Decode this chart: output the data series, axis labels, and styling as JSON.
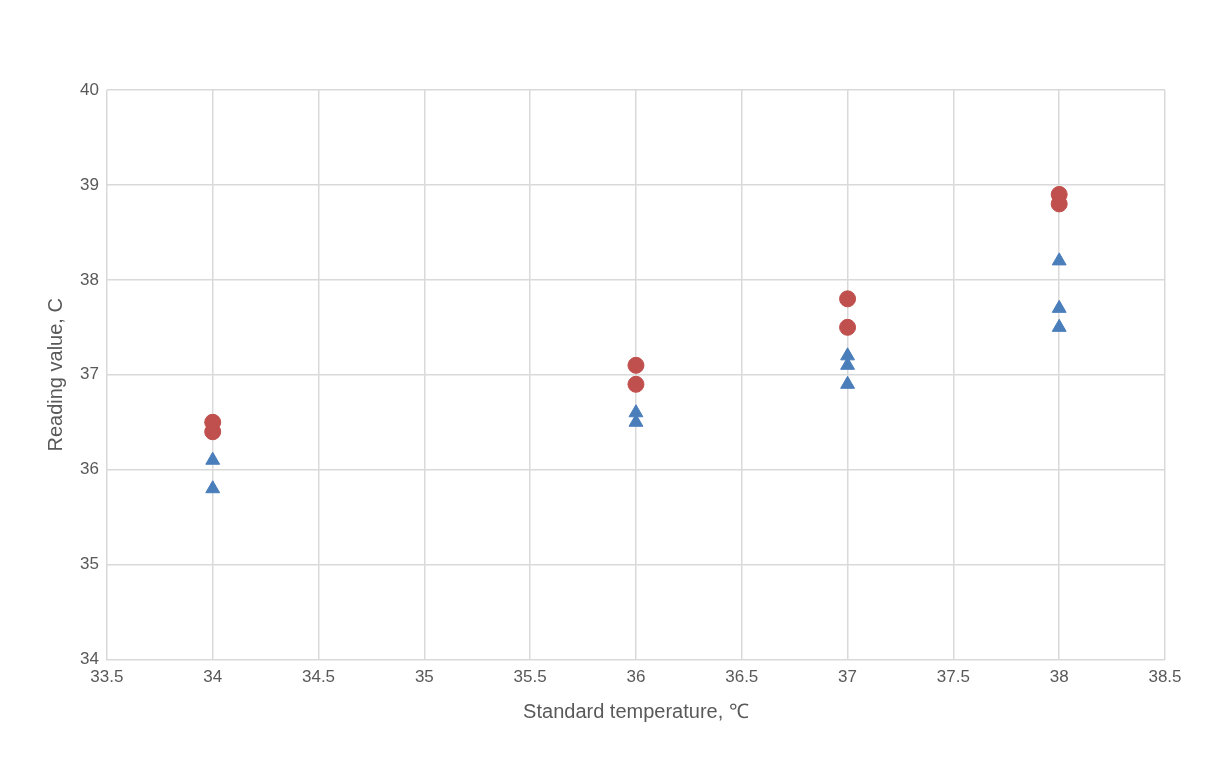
{
  "chart_data": {
    "type": "scatter",
    "xlabel": "Standard temperature, ℃",
    "ylabel": "Reading value, C",
    "series": [
      {
        "color": "#4a7ebb",
        "marker": "triangle",
        "x": [
          34,
          34,
          36,
          36,
          37,
          37,
          37,
          38,
          38,
          38
        ],
        "values": [
          36.1,
          35.8,
          36.6,
          36.5,
          37.2,
          37.1,
          36.9,
          38.2,
          37.7,
          37.5
        ]
      },
      {
        "color": "#c0504d",
        "marker": "circle",
        "x": [
          34,
          34,
          36,
          36,
          37,
          37,
          38,
          38
        ],
        "values": [
          36.5,
          36.4,
          37.1,
          36.9,
          37.8,
          37.5,
          38.9,
          38.8
        ]
      }
    ],
    "xlim": [
      33.5,
      38.5
    ],
    "xticks": [
      33.5,
      34,
      34.5,
      35,
      35.5,
      36,
      36.5,
      37,
      37.5,
      38,
      38.5
    ],
    "ylim": [
      34,
      40
    ],
    "yticks": [
      34,
      35,
      36,
      37,
      38,
      39,
      40
    ],
    "grid": true,
    "legend": false
  }
}
